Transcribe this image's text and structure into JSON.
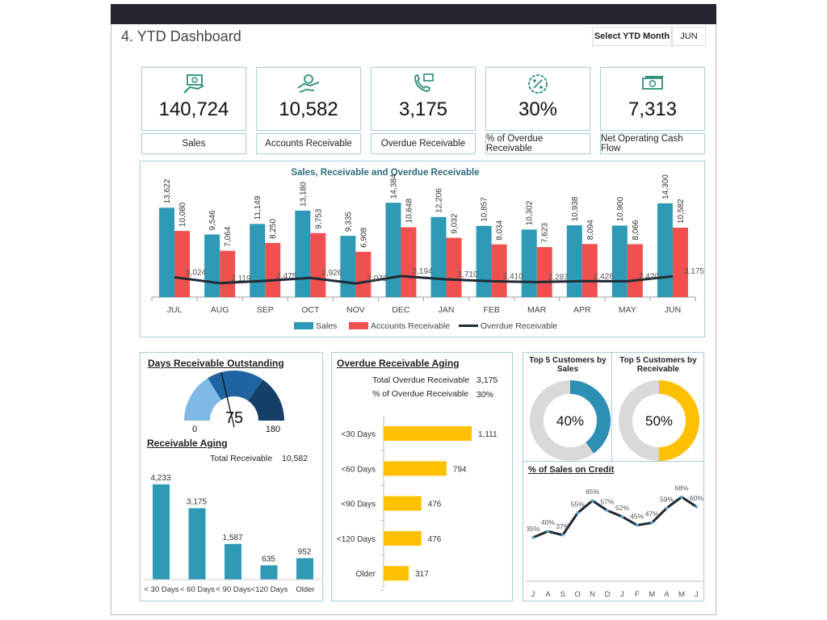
{
  "header": {
    "title": "4. YTD Dashboard",
    "select_label": "Select YTD Month",
    "select_value": "JUN"
  },
  "kpis": [
    {
      "value": "140,724",
      "label": "Sales",
      "icon": "money-hand-icon"
    },
    {
      "value": "10,582",
      "label": "Accounts Receivable",
      "icon": "hand-coin-icon"
    },
    {
      "value": "3,175",
      "label": "Overdue Receivable",
      "icon": "phone-message-icon"
    },
    {
      "value": "30%",
      "label": "% of Overdue Receivable",
      "icon": "percent-badge-icon"
    },
    {
      "value": "7,313",
      "label": "Net Operating Cash Flow",
      "icon": "banknote-icon"
    }
  ],
  "colors": {
    "sales": "#2e9ab5",
    "receivable": "#f0504f",
    "overdue": "#1f2a36",
    "accent_title": "#2f6b7a",
    "yellow": "#ffc000",
    "donut_blue": "#2e8fb5",
    "gray": "#d9d9d9",
    "border": "#a8cde0"
  },
  "chart_data": [
    {
      "type": "bar",
      "title": "Sales, Receivable and Overdue Receivable",
      "categories": [
        "JUL",
        "AUG",
        "SEP",
        "OCT",
        "NOV",
        "DEC",
        "JAN",
        "FEB",
        "MAR",
        "APR",
        "MAY",
        "JUN"
      ],
      "series": [
        {
          "name": "Sales",
          "type": "bar",
          "values": [
            13622,
            9546,
            11149,
            13180,
            9335,
            14384,
            12206,
            10857,
            10302,
            10938,
            10900,
            14300
          ]
        },
        {
          "name": "Accounts Receivable",
          "type": "bar",
          "values": [
            10080,
            7064,
            8250,
            9753,
            6908,
            10648,
            9032,
            8034,
            7623,
            8094,
            8066,
            10582
          ]
        },
        {
          "name": "Overdue Receivable",
          "type": "line",
          "values": [
            3024,
            2119,
            2475,
            2926,
            2072,
            3194,
            2710,
            2410,
            2287,
            2428,
            2420,
            3175
          ]
        }
      ],
      "ylim": [
        0,
        16000
      ],
      "legend": "bottom"
    },
    {
      "type": "gauge",
      "title": "Days Receivable Outstanding",
      "value": 75,
      "min": 0,
      "max": 180
    },
    {
      "type": "bar",
      "title": "Receivable Aging",
      "categories": [
        "< 30 Days",
        "< 60 Days",
        "< 90 Days",
        "<120 Days",
        "Older"
      ],
      "values": [
        4233,
        3175,
        1587,
        635,
        952
      ],
      "total_label": "Total Receivable",
      "total": "10,582"
    },
    {
      "type": "bar",
      "orientation": "horizontal",
      "title": "Overdue Receivable Aging",
      "categories": [
        "<30 Days",
        "<60 Days",
        "<90 Days",
        "<120 Days",
        "Older"
      ],
      "values": [
        1111,
        794,
        476,
        476,
        317
      ],
      "summary": [
        {
          "label": "Total  Overdue Receivable",
          "value": "3,175"
        },
        {
          "label": "% of Overdue Receivable",
          "value": "30%"
        }
      ]
    },
    {
      "type": "pie",
      "title": "Top 5 Customers by Sales",
      "value": 40,
      "label": "40%"
    },
    {
      "type": "pie",
      "title": "Top 5 Customers by Receivable",
      "value": 50,
      "label": "50%"
    },
    {
      "type": "line",
      "title": "% of Sales on Credit",
      "categories": [
        "J",
        "A",
        "S",
        "O",
        "N",
        "D",
        "J",
        "F",
        "M",
        "A",
        "M",
        "J"
      ],
      "values": [
        35,
        40,
        37,
        55,
        65,
        57,
        52,
        45,
        47,
        59,
        68,
        60
      ]
    }
  ]
}
